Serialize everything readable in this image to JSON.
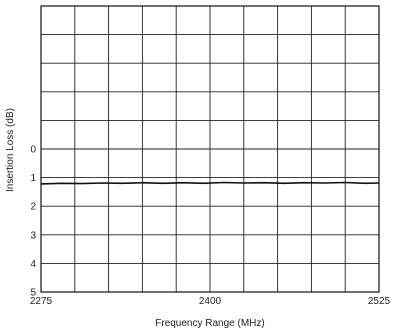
{
  "chart_data": {
    "type": "line",
    "title": "",
    "xlabel": "Frequency Range (MHz)",
    "ylabel": "Insertion Loss (dB)",
    "xlim": [
      2275,
      2525
    ],
    "x_tick_labels": [
      "2275",
      "2400",
      "2525"
    ],
    "x_tick_values": [
      2275,
      2400,
      2525
    ],
    "y_tick_labels": [
      "0",
      "1",
      "2",
      "3",
      "4",
      "5"
    ],
    "y_tick_values": [
      0,
      1,
      2,
      3,
      4,
      5
    ],
    "y_inverted": true,
    "grid": true,
    "series": [
      {
        "x": [
          2275,
          2290,
          2305,
          2320,
          2335,
          2350,
          2365,
          2380,
          2395,
          2410,
          2425,
          2440,
          2455,
          2470,
          2485,
          2500,
          2515,
          2525
        ],
        "y": [
          1.22,
          1.2,
          1.21,
          1.19,
          1.2,
          1.18,
          1.2,
          1.18,
          1.2,
          1.17,
          1.19,
          1.18,
          1.2,
          1.18,
          1.19,
          1.17,
          1.2,
          1.19
        ],
        "color": "#111111"
      }
    ]
  }
}
